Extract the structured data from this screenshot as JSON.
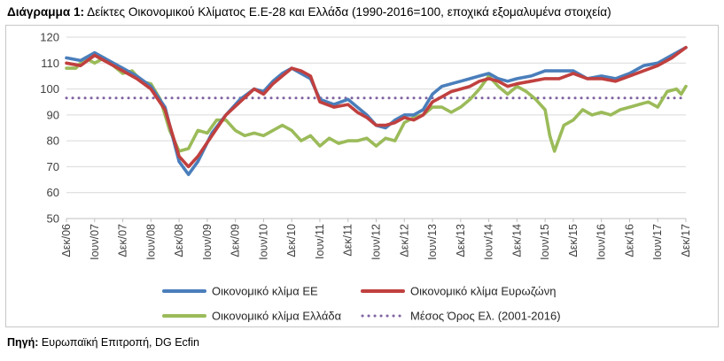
{
  "caption": {
    "label": "Διάγραμμα 1:",
    "text": " Δείκτες Οικονομικού Κλίματος Ε.Ε-28 και Ελλάδα (1990-2016=100, εποχικά εξομαλυμένα στοιχεία)"
  },
  "source": {
    "label": "Πηγή:",
    "text": " Ευρωπαϊκή Επιτροπή, DG Ecfin"
  },
  "colors": {
    "eu": "#4a7ebb",
    "ez": "#c0403f",
    "gr": "#9bbb59",
    "avg": "#8064a2",
    "grid": "#d9d9d9"
  },
  "chart_data": {
    "type": "line",
    "ylim": [
      50,
      120
    ],
    "yticks": [
      50,
      60,
      70,
      80,
      90,
      100,
      110,
      120
    ],
    "xlim": [
      0,
      132
    ],
    "xticks": [
      {
        "x": 0,
        "label": "Δεκ/06"
      },
      {
        "x": 6,
        "label": "Ιουν/07"
      },
      {
        "x": 12,
        "label": "Δεκ/07"
      },
      {
        "x": 18,
        "label": "Ιουν/08"
      },
      {
        "x": 24,
        "label": "Δεκ/08"
      },
      {
        "x": 30,
        "label": "Ιουν/09"
      },
      {
        "x": 36,
        "label": "Δεκ/09"
      },
      {
        "x": 42,
        "label": "Ιουν/10"
      },
      {
        "x": 48,
        "label": "Δεκ/10"
      },
      {
        "x": 54,
        "label": "Ιουν/11"
      },
      {
        "x": 60,
        "label": "Δεκ/11"
      },
      {
        "x": 66,
        "label": "Ιουν/12"
      },
      {
        "x": 72,
        "label": "Δεκ/12"
      },
      {
        "x": 78,
        "label": "Ιουν/13"
      },
      {
        "x": 84,
        "label": "Δεκ/13"
      },
      {
        "x": 90,
        "label": "Ιουν/14"
      },
      {
        "x": 96,
        "label": "Δεκ/14"
      },
      {
        "x": 102,
        "label": "Ιουν/15"
      },
      {
        "x": 108,
        "label": "Δεκ/15"
      },
      {
        "x": 114,
        "label": "Ιουν/16"
      },
      {
        "x": 120,
        "label": "Δεκ/16"
      },
      {
        "x": 126,
        "label": "Ιουν/17"
      },
      {
        "x": 132,
        "label": "Δεκ/17"
      }
    ],
    "grid": true,
    "legend_position": "bottom",
    "series": [
      {
        "name": "Οικονομικό κλίμα ΕΕ",
        "color_key": "eu",
        "style": "solid",
        "points": [
          [
            0,
            112
          ],
          [
            3,
            111
          ],
          [
            6,
            114
          ],
          [
            9,
            111
          ],
          [
            12,
            108
          ],
          [
            15,
            105
          ],
          [
            18,
            101
          ],
          [
            21,
            93
          ],
          [
            24,
            72
          ],
          [
            26,
            67
          ],
          [
            28,
            72
          ],
          [
            31,
            83
          ],
          [
            34,
            90
          ],
          [
            37,
            96
          ],
          [
            40,
            100
          ],
          [
            42,
            99
          ],
          [
            44,
            103
          ],
          [
            46,
            106
          ],
          [
            48,
            108
          ],
          [
            50,
            106
          ],
          [
            52,
            104
          ],
          [
            54,
            96
          ],
          [
            57,
            94
          ],
          [
            60,
            96
          ],
          [
            62,
            93
          ],
          [
            64,
            90
          ],
          [
            66,
            86
          ],
          [
            68,
            85
          ],
          [
            70,
            88
          ],
          [
            72,
            90
          ],
          [
            74,
            90
          ],
          [
            76,
            92
          ],
          [
            78,
            98
          ],
          [
            80,
            101
          ],
          [
            82,
            102
          ],
          [
            84,
            103
          ],
          [
            86,
            104
          ],
          [
            88,
            105
          ],
          [
            90,
            106
          ],
          [
            92,
            104
          ],
          [
            94,
            103
          ],
          [
            96,
            104
          ],
          [
            99,
            105
          ],
          [
            102,
            107
          ],
          [
            105,
            107
          ],
          [
            108,
            107
          ],
          [
            111,
            104
          ],
          [
            114,
            105
          ],
          [
            117,
            104
          ],
          [
            120,
            106
          ],
          [
            123,
            109
          ],
          [
            126,
            110
          ],
          [
            129,
            113
          ],
          [
            132,
            116
          ]
        ]
      },
      {
        "name": "Οικονομικό κλίμα Ευρωζώνη",
        "color_key": "ez",
        "style": "solid",
        "points": [
          [
            0,
            110
          ],
          [
            3,
            109
          ],
          [
            6,
            113
          ],
          [
            9,
            110
          ],
          [
            12,
            107
          ],
          [
            15,
            104
          ],
          [
            18,
            100
          ],
          [
            21,
            92
          ],
          [
            24,
            74
          ],
          [
            26,
            70
          ],
          [
            28,
            74
          ],
          [
            31,
            82
          ],
          [
            34,
            90
          ],
          [
            37,
            95
          ],
          [
            40,
            100
          ],
          [
            42,
            98
          ],
          [
            44,
            102
          ],
          [
            46,
            105
          ],
          [
            48,
            108
          ],
          [
            50,
            107
          ],
          [
            52,
            105
          ],
          [
            54,
            95
          ],
          [
            57,
            93
          ],
          [
            60,
            94
          ],
          [
            62,
            91
          ],
          [
            64,
            89
          ],
          [
            66,
            86
          ],
          [
            68,
            86
          ],
          [
            70,
            87
          ],
          [
            72,
            89
          ],
          [
            74,
            88
          ],
          [
            76,
            90
          ],
          [
            78,
            95
          ],
          [
            80,
            97
          ],
          [
            82,
            99
          ],
          [
            84,
            100
          ],
          [
            86,
            101
          ],
          [
            88,
            103
          ],
          [
            90,
            104
          ],
          [
            92,
            103
          ],
          [
            94,
            101
          ],
          [
            96,
            102
          ],
          [
            99,
            103
          ],
          [
            102,
            104
          ],
          [
            105,
            104
          ],
          [
            108,
            106
          ],
          [
            111,
            104
          ],
          [
            114,
            104
          ],
          [
            117,
            103
          ],
          [
            120,
            105
          ],
          [
            123,
            107
          ],
          [
            126,
            109
          ],
          [
            129,
            112
          ],
          [
            132,
            116
          ]
        ]
      },
      {
        "name": "Οικονομικό κλίμα Ελλάδα",
        "color_key": "gr",
        "style": "solid",
        "points": [
          [
            0,
            108
          ],
          [
            2,
            108
          ],
          [
            4,
            112
          ],
          [
            6,
            110
          ],
          [
            8,
            112
          ],
          [
            10,
            109
          ],
          [
            12,
            106
          ],
          [
            14,
            107
          ],
          [
            16,
            103
          ],
          [
            18,
            102
          ],
          [
            20,
            96
          ],
          [
            22,
            84
          ],
          [
            24,
            76
          ],
          [
            26,
            77
          ],
          [
            28,
            84
          ],
          [
            30,
            83
          ],
          [
            32,
            88
          ],
          [
            34,
            88
          ],
          [
            36,
            84
          ],
          [
            38,
            82
          ],
          [
            40,
            83
          ],
          [
            42,
            82
          ],
          [
            44,
            84
          ],
          [
            46,
            86
          ],
          [
            48,
            84
          ],
          [
            50,
            80
          ],
          [
            52,
            82
          ],
          [
            54,
            78
          ],
          [
            56,
            81
          ],
          [
            58,
            79
          ],
          [
            60,
            80
          ],
          [
            62,
            80
          ],
          [
            64,
            81
          ],
          [
            66,
            78
          ],
          [
            68,
            81
          ],
          [
            70,
            80
          ],
          [
            72,
            87
          ],
          [
            74,
            89
          ],
          [
            76,
            90
          ],
          [
            78,
            93
          ],
          [
            80,
            93
          ],
          [
            82,
            91
          ],
          [
            84,
            93
          ],
          [
            86,
            96
          ],
          [
            88,
            100
          ],
          [
            90,
            105
          ],
          [
            92,
            101
          ],
          [
            94,
            98
          ],
          [
            96,
            101
          ],
          [
            98,
            99
          ],
          [
            100,
            96
          ],
          [
            102,
            92
          ],
          [
            103,
            82
          ],
          [
            104,
            76
          ],
          [
            106,
            86
          ],
          [
            108,
            88
          ],
          [
            110,
            92
          ],
          [
            112,
            90
          ],
          [
            114,
            91
          ],
          [
            116,
            90
          ],
          [
            118,
            92
          ],
          [
            120,
            93
          ],
          [
            122,
            94
          ],
          [
            124,
            95
          ],
          [
            126,
            93
          ],
          [
            128,
            99
          ],
          [
            130,
            100
          ],
          [
            131,
            98
          ],
          [
            132,
            101
          ]
        ]
      },
      {
        "name": "Μέσος Όρος Ελ. (2001-2016)",
        "color_key": "avg",
        "style": "dotted",
        "points": [
          [
            0,
            96.5
          ],
          [
            132,
            96.5
          ]
        ]
      }
    ]
  }
}
